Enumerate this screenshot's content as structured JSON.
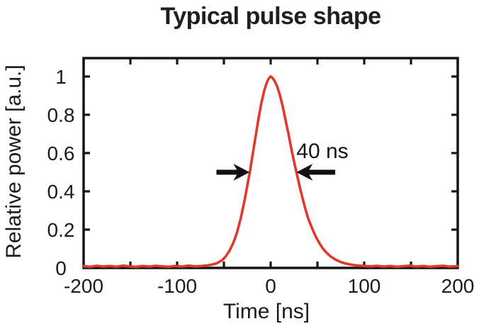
{
  "chart_data": {
    "type": "line",
    "title": "Typical pulse shape",
    "xlabel": "Time [ns]",
    "ylabel": "Relative power [a.u.]",
    "xlim": [
      -200,
      200
    ],
    "ylim": [
      0,
      1.096
    ],
    "grid": false,
    "legend": "none",
    "xtick_labels": [
      "-200",
      "-100",
      "0",
      "100",
      "200"
    ],
    "xtick_values": [
      -200,
      -100,
      0,
      100,
      200
    ],
    "xtick_marks": [
      -200,
      -150,
      -100,
      -50,
      0,
      50,
      100,
      150,
      200
    ],
    "ytick_labels": [
      "0",
      "0.2",
      "0.4",
      "0.6",
      "0.8",
      "1"
    ],
    "ytick_values": [
      0,
      0.2,
      0.4,
      0.6,
      0.8,
      1
    ],
    "ytick_marks": [
      0.2,
      0.4,
      0.6,
      0.8,
      1
    ],
    "colors": {
      "curve": "#e0392c",
      "ink": "#1d1b1a",
      "frame": "#181512",
      "arrow": "#111111"
    },
    "series": [
      {
        "name": "pulse",
        "color": "#e0392c",
        "x": [
          -200,
          -193,
          -186,
          -179,
          -172,
          -165,
          -158,
          -151,
          -144,
          -137,
          -130,
          -123,
          -116,
          -109,
          -102,
          -95,
          -88,
          -81,
          -74,
          -68,
          -62,
          -57,
          -52,
          -48,
          -44,
          -40,
          -36,
          -32,
          -28,
          -25,
          -22,
          -19,
          -16,
          -13,
          -10,
          -7,
          -4,
          -2,
          0,
          2,
          4,
          7,
          10,
          13,
          16,
          19,
          22,
          25,
          28,
          31,
          34,
          37,
          40,
          44,
          48,
          52,
          56,
          60,
          64,
          68,
          72,
          76,
          80,
          85,
          90,
          95,
          100,
          107,
          114,
          121,
          128,
          135,
          142,
          149,
          156,
          163,
          170,
          177,
          184,
          191,
          200
        ],
        "y": [
          0.009,
          0.006,
          0.011,
          0.007,
          0.01,
          0.006,
          0.012,
          0.008,
          0.006,
          0.01,
          0.007,
          0.011,
          0.008,
          0.006,
          0.01,
          0.007,
          0.012,
          0.008,
          0.01,
          0.013,
          0.018,
          0.026,
          0.04,
          0.06,
          0.09,
          0.13,
          0.185,
          0.26,
          0.35,
          0.43,
          0.51,
          0.6,
          0.69,
          0.78,
          0.86,
          0.925,
          0.97,
          0.99,
          1.0,
          0.993,
          0.978,
          0.948,
          0.9,
          0.84,
          0.77,
          0.7,
          0.625,
          0.555,
          0.49,
          0.425,
          0.365,
          0.31,
          0.26,
          0.21,
          0.165,
          0.13,
          0.1,
          0.078,
          0.06,
          0.047,
          0.037,
          0.029,
          0.023,
          0.018,
          0.014,
          0.012,
          0.01,
          0.008,
          0.011,
          0.007,
          0.01,
          0.006,
          0.009,
          0.012,
          0.007,
          0.01,
          0.006,
          0.009,
          0.011,
          0.007,
          0.009
        ]
      }
    ],
    "annotation": {
      "label": "40 ns",
      "fwhm_ns": 40,
      "label_pos": {
        "x": 55.3,
        "y": 0.607
      },
      "arrows": [
        {
          "x_tail": -58,
          "x_tip": -22.5,
          "y": 0.5,
          "direction": "right"
        },
        {
          "x_tail": 69,
          "x_tip": 27.5,
          "y": 0.5,
          "direction": "left"
        }
      ]
    }
  }
}
